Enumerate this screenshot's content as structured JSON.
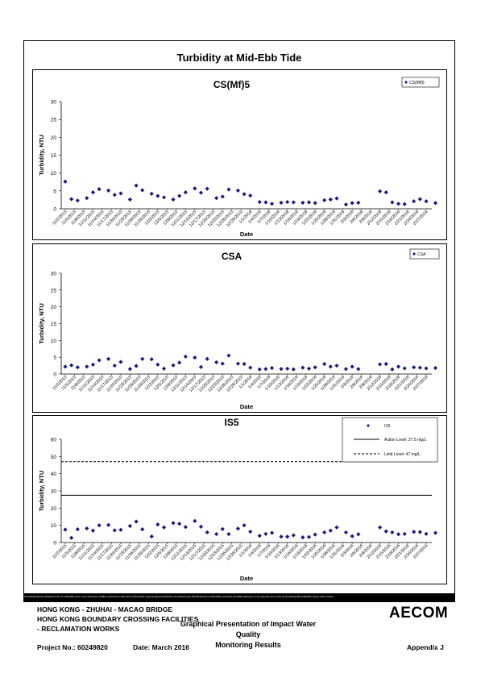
{
  "page_title": "Turbidity at Mid-Ebb Tide",
  "date_labels": [
    "11/2/2015",
    "11/5/2015",
    "11/8/2015",
    "11/11/2015",
    "11/14/2015",
    "11/17/2015",
    "11/20/2015",
    "11/23/2015",
    "11/26/2015",
    "11/29/2015",
    "12/2/2015",
    "12/5/2015",
    "12/8/2015",
    "12/11/2015",
    "12/14/2015",
    "12/17/2015",
    "12/20/2015",
    "12/23/2015",
    "12/26/2015",
    "12/29/2015",
    "1/1/2016",
    "1/4/2016",
    "1/7/2016",
    "1/10/2016",
    "1/13/2016",
    "1/16/2016",
    "1/19/2016",
    "1/22/2016",
    "1/25/2016",
    "1/28/2016",
    "1/31/2016",
    "2/3/2016",
    "2/6/2016",
    "2/9/2016",
    "2/12/2016",
    "2/15/2016",
    "2/18/2016",
    "2/21/2016",
    "2/24/2016",
    "2/27/2016"
  ],
  "chart_data": [
    {
      "type": "scatter",
      "title": "CS(Mf)5",
      "xlabel": "Date",
      "ylabel": "Turbidity, NTU",
      "ylim": [
        0,
        30
      ],
      "yticks": [
        0,
        5,
        10,
        15,
        20,
        25,
        30
      ],
      "xlim": [
        "11/2/2015",
        "2/27/2016"
      ],
      "grid": false,
      "legend_position": "top-right",
      "series": [
        {
          "name": "CS(Mf)5",
          "marker": "diamond",
          "color": "#1a1a80",
          "points": [
            [
              "11/2/2015",
              7.6
            ],
            [
              "11/4/2015",
              2.7
            ],
            [
              "11/6/2015",
              2.3
            ],
            [
              "11/9/2015",
              3.0
            ],
            [
              "11/11/2015",
              4.6
            ],
            [
              "11/13/2015",
              5.5
            ],
            [
              "11/16/2015",
              5.1
            ],
            [
              "11/18/2015",
              3.9
            ],
            [
              "11/20/2015",
              4.3
            ],
            [
              "11/23/2015",
              2.6
            ],
            [
              "11/25/2015",
              6.5
            ],
            [
              "11/27/2015",
              5.2
            ],
            [
              "11/30/2015",
              4.2
            ],
            [
              "12/2/2015",
              3.6
            ],
            [
              "12/4/2015",
              3.2
            ],
            [
              "12/7/2015",
              2.6
            ],
            [
              "12/9/2015",
              3.6
            ],
            [
              "12/11/2015",
              4.6
            ],
            [
              "12/14/2015",
              5.7
            ],
            [
              "12/16/2015",
              4.5
            ],
            [
              "12/18/2015",
              5.6
            ],
            [
              "12/21/2015",
              3.0
            ],
            [
              "12/23/2015",
              3.4
            ],
            [
              "12/25/2015",
              5.4
            ],
            [
              "12/28/2015",
              5.1
            ],
            [
              "12/30/2015",
              4.1
            ],
            [
              "1/1/2016",
              3.7
            ],
            [
              "1/4/2016",
              1.9
            ],
            [
              "1/6/2016",
              1.8
            ],
            [
              "1/8/2016",
              1.4
            ],
            [
              "1/11/2016",
              1.7
            ],
            [
              "1/13/2016",
              1.9
            ],
            [
              "1/15/2016",
              1.8
            ],
            [
              "1/18/2016",
              1.7
            ],
            [
              "1/20/2016",
              1.8
            ],
            [
              "1/22/2016",
              1.6
            ],
            [
              "1/25/2016",
              2.4
            ],
            [
              "1/27/2016",
              2.6
            ],
            [
              "1/29/2016",
              2.9
            ],
            [
              "2/1/2016",
              1.2
            ],
            [
              "2/3/2016",
              1.6
            ],
            [
              "2/5/2016",
              1.7
            ],
            [
              "2/12/2016",
              4.9
            ],
            [
              "2/14/2016",
              4.6
            ],
            [
              "2/16/2016",
              1.8
            ],
            [
              "2/18/2016",
              1.4
            ],
            [
              "2/20/2016",
              1.3
            ],
            [
              "2/23/2016",
              2.1
            ],
            [
              "2/25/2016",
              2.7
            ],
            [
              "2/27/2016",
              2.1
            ],
            [
              "3/1/2016",
              1.6
            ]
          ]
        }
      ]
    },
    {
      "type": "scatter",
      "title": "CSA",
      "xlabel": "Date",
      "ylabel": "Turbidity, NTU",
      "ylim": [
        0,
        30
      ],
      "yticks": [
        0,
        5,
        10,
        15,
        20,
        25,
        30
      ],
      "xlim": [
        "11/2/2015",
        "2/27/2016"
      ],
      "grid": false,
      "legend_position": "top-right",
      "series": [
        {
          "name": "CSA",
          "marker": "diamond",
          "color": "#1a1a80",
          "points": [
            [
              "11/2/2015",
              2.2
            ],
            [
              "11/4/2015",
              2.6
            ],
            [
              "11/6/2015",
              2.0
            ],
            [
              "11/9/2015",
              2.2
            ],
            [
              "11/11/2015",
              2.8
            ],
            [
              "11/13/2015",
              4.1
            ],
            [
              "11/16/2015",
              4.5
            ],
            [
              "11/18/2015",
              2.5
            ],
            [
              "11/20/2015",
              3.6
            ],
            [
              "11/23/2015",
              1.5
            ],
            [
              "11/25/2015",
              2.4
            ],
            [
              "11/27/2015",
              4.5
            ],
            [
              "11/30/2015",
              4.4
            ],
            [
              "12/2/2015",
              2.8
            ],
            [
              "12/4/2015",
              1.6
            ],
            [
              "12/7/2015",
              2.6
            ],
            [
              "12/9/2015",
              3.4
            ],
            [
              "12/11/2015",
              5.2
            ],
            [
              "12/14/2015",
              4.9
            ],
            [
              "12/16/2015",
              2.1
            ],
            [
              "12/18/2015",
              4.5
            ],
            [
              "12/21/2015",
              3.5
            ],
            [
              "12/23/2015",
              3.1
            ],
            [
              "12/25/2015",
              5.5
            ],
            [
              "12/28/2015",
              3.1
            ],
            [
              "12/30/2015",
              3.0
            ],
            [
              "1/1/2016",
              1.9
            ],
            [
              "1/4/2016",
              1.4
            ],
            [
              "1/6/2016",
              1.5
            ],
            [
              "1/8/2016",
              1.8
            ],
            [
              "1/11/2016",
              1.5
            ],
            [
              "1/13/2016",
              1.6
            ],
            [
              "1/15/2016",
              1.4
            ],
            [
              "1/18/2016",
              1.9
            ],
            [
              "1/20/2016",
              1.6
            ],
            [
              "1/22/2016",
              2.0
            ],
            [
              "1/25/2016",
              3.0
            ],
            [
              "1/27/2016",
              2.2
            ],
            [
              "1/29/2016",
              2.5
            ],
            [
              "2/1/2016",
              1.5
            ],
            [
              "2/3/2016",
              2.2
            ],
            [
              "2/5/2016",
              1.5
            ],
            [
              "2/12/2016",
              2.9
            ],
            [
              "2/14/2016",
              3.0
            ],
            [
              "2/16/2016",
              1.4
            ],
            [
              "2/18/2016",
              2.2
            ],
            [
              "2/20/2016",
              1.7
            ],
            [
              "2/23/2016",
              2.0
            ],
            [
              "2/25/2016",
              1.9
            ],
            [
              "2/27/2016",
              1.7
            ],
            [
              "3/1/2016",
              1.8
            ]
          ]
        }
      ]
    },
    {
      "type": "scatter",
      "title": "IS5",
      "xlabel": "Date",
      "ylabel": "Turbidity, NTU",
      "ylim": [
        0,
        60
      ],
      "yticks": [
        0,
        10,
        20,
        30,
        40,
        50,
        60
      ],
      "xlim": [
        "11/2/2015",
        "2/27/2016"
      ],
      "grid": false,
      "legend_position": "top-right",
      "series": [
        {
          "name": "IS5",
          "marker": "diamond",
          "color": "#1a1a80",
          "points": [
            [
              "11/2/2015",
              7.5
            ],
            [
              "11/4/2015",
              2.7
            ],
            [
              "11/6/2015",
              7.7
            ],
            [
              "11/9/2015",
              8.2
            ],
            [
              "11/11/2015",
              6.9
            ],
            [
              "11/13/2015",
              10.0
            ],
            [
              "11/16/2015",
              10.2
            ],
            [
              "11/18/2015",
              7.1
            ],
            [
              "11/20/2015",
              7.4
            ],
            [
              "11/23/2015",
              9.6
            ],
            [
              "11/25/2015",
              12.2
            ],
            [
              "11/27/2015",
              7.7
            ],
            [
              "11/30/2015",
              3.5
            ],
            [
              "12/2/2015",
              10.5
            ],
            [
              "12/4/2015",
              8.8
            ],
            [
              "12/7/2015",
              11.3
            ],
            [
              "12/9/2015",
              10.9
            ],
            [
              "12/11/2015",
              9.0
            ],
            [
              "12/14/2015",
              12.5
            ],
            [
              "12/16/2015",
              9.2
            ],
            [
              "12/18/2015",
              5.9
            ],
            [
              "12/21/2015",
              4.9
            ],
            [
              "12/23/2015",
              7.8
            ],
            [
              "12/25/2015",
              4.9
            ],
            [
              "12/28/2015",
              8.1
            ],
            [
              "12/30/2015",
              10.0
            ],
            [
              "1/1/2016",
              6.3
            ],
            [
              "1/4/2016",
              3.9
            ],
            [
              "1/6/2016",
              5.0
            ],
            [
              "1/8/2016",
              5.6
            ],
            [
              "1/11/2016",
              3.4
            ],
            [
              "1/13/2016",
              3.4
            ],
            [
              "1/15/2016",
              4.2
            ],
            [
              "1/18/2016",
              3.0
            ],
            [
              "1/20/2016",
              3.2
            ],
            [
              "1/22/2016",
              4.6
            ],
            [
              "1/25/2016",
              5.9
            ],
            [
              "1/27/2016",
              6.9
            ],
            [
              "1/29/2016",
              8.8
            ],
            [
              "2/1/2016",
              5.9
            ],
            [
              "2/3/2016",
              3.7
            ],
            [
              "2/5/2016",
              4.8
            ],
            [
              "2/12/2016",
              8.8
            ],
            [
              "2/14/2016",
              6.5
            ],
            [
              "2/16/2016",
              5.9
            ],
            [
              "2/18/2016",
              4.8
            ],
            [
              "2/20/2016",
              5.0
            ],
            [
              "2/23/2016",
              6.2
            ],
            [
              "2/25/2016",
              6.1
            ],
            [
              "2/27/2016",
              5.0
            ],
            [
              "3/1/2016",
              5.6
            ]
          ]
        }
      ],
      "reference_lines": [
        {
          "label": "Action Level: 27.5 mg/L",
          "value": 27.5,
          "style": "solid"
        },
        {
          "label": "Limit Level: 47 mg/L",
          "value": 47,
          "style": "dashed"
        }
      ]
    }
  ],
  "footer": {
    "line1": "HONG KONG - ZHUHAI - MACAO BRIDGE",
    "line2": "HONG KONG BOUNDARY CROSSING FACILITIES",
    "line3": "- RECLAMATION WORKS",
    "subtitle_line1": "Graphical Presentation of Impact Water Quality",
    "subtitle_line2": "Monitoring Results",
    "project": "Project No.: 60249820",
    "date": "Date: March 2016",
    "appendix": "Appendix J",
    "logo": "AECOM",
    "disclaimer": "This drawing has been prepared for the use of AECOM's client. It may not be used, modified, reproduced or relied upon by third parties, except as agreed by AECOM or as required by law. AECOM accepts no responsibility, and denies any liability whatsoever, to any party that uses or relies on this drawing without AECOM's express written consent."
  }
}
